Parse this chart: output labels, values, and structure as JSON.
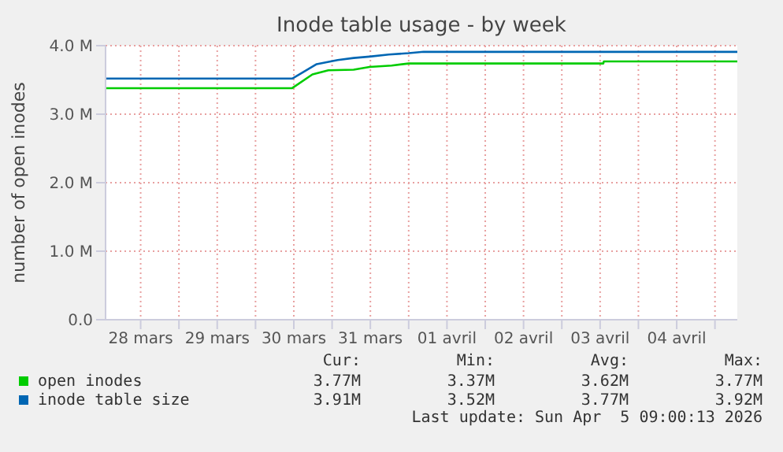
{
  "chart_data": {
    "type": "line",
    "title": "Inode table usage - by week",
    "ylabel": "number of open inodes",
    "xlim": [
      "2026-03-28T01:00",
      "2026-04-05T07:00"
    ],
    "xticks": [
      {
        "value": "2026-03-28T12:00",
        "label": "28 mars"
      },
      {
        "value": "2026-03-29T00:00",
        "label": null
      },
      {
        "value": "2026-03-29T12:00",
        "label": "29 mars"
      },
      {
        "value": "2026-03-30T00:00",
        "label": null
      },
      {
        "value": "2026-03-30T12:00",
        "label": "30 mars"
      },
      {
        "value": "2026-03-31T00:00",
        "label": null
      },
      {
        "value": "2026-03-31T12:00",
        "label": "31 mars"
      },
      {
        "value": "2026-04-01T00:00",
        "label": null
      },
      {
        "value": "2026-04-01T12:00",
        "label": "01 avril"
      },
      {
        "value": "2026-04-02T00:00",
        "label": null
      },
      {
        "value": "2026-04-02T12:00",
        "label": "02 avril"
      },
      {
        "value": "2026-04-03T00:00",
        "label": null
      },
      {
        "value": "2026-04-03T12:00",
        "label": "03 avril"
      },
      {
        "value": "2026-04-04T00:00",
        "label": null
      },
      {
        "value": "2026-04-04T12:00",
        "label": "04 avril"
      },
      {
        "value": "2026-04-05T00:00",
        "label": null
      }
    ],
    "ylim": [
      0,
      4
    ],
    "yticks": [
      {
        "value": 0,
        "label": "0.0"
      },
      {
        "value": 1,
        "label": "1.0 M"
      },
      {
        "value": 2,
        "label": "2.0 M"
      },
      {
        "value": 3,
        "label": "3.0 M"
      },
      {
        "value": 4,
        "label": "4.0 M"
      }
    ],
    "grid": true,
    "legend": "bottom",
    "marker": "none",
    "line_style": "solid",
    "series": [
      {
        "name": "open inodes",
        "color": "#00cc00",
        "x": [
          "2026-03-28T01:00",
          "2026-03-30T11:30",
          "2026-03-30T17:50",
          "2026-03-30T22:50",
          "2026-03-31T06:45",
          "2026-03-31T11:45",
          "2026-03-31T18:40",
          "2026-04-01T00:00",
          "2026-04-03T13:00",
          "2026-04-03T13:10",
          "2026-04-05T07:00"
        ],
        "values": [
          3.38,
          3.38,
          3.58,
          3.64,
          3.65,
          3.69,
          3.71,
          3.74,
          3.74,
          3.77,
          3.77
        ]
      },
      {
        "name": "inode table size",
        "color": "#0066b3",
        "x": [
          "2026-03-28T01:00",
          "2026-03-30T11:30",
          "2026-03-30T19:10",
          "2026-03-31T01:45",
          "2026-03-31T06:45",
          "2026-03-31T11:45",
          "2026-03-31T17:45",
          "2026-04-01T00:00",
          "2026-04-01T04:40",
          "2026-04-05T07:00"
        ],
        "values": [
          3.52,
          3.52,
          3.73,
          3.79,
          3.82,
          3.84,
          3.87,
          3.89,
          3.91,
          3.91
        ]
      }
    ],
    "annotations": [
      "Cur:",
      "Min:",
      "Avg:",
      "Max:",
      "3.77M",
      "3.37M",
      "3.62M",
      "3.77M",
      "3.91M",
      "3.52M",
      "3.77M",
      "3.92M",
      "Last update: Sun Apr  5 09:00:13 2026"
    ]
  }
}
